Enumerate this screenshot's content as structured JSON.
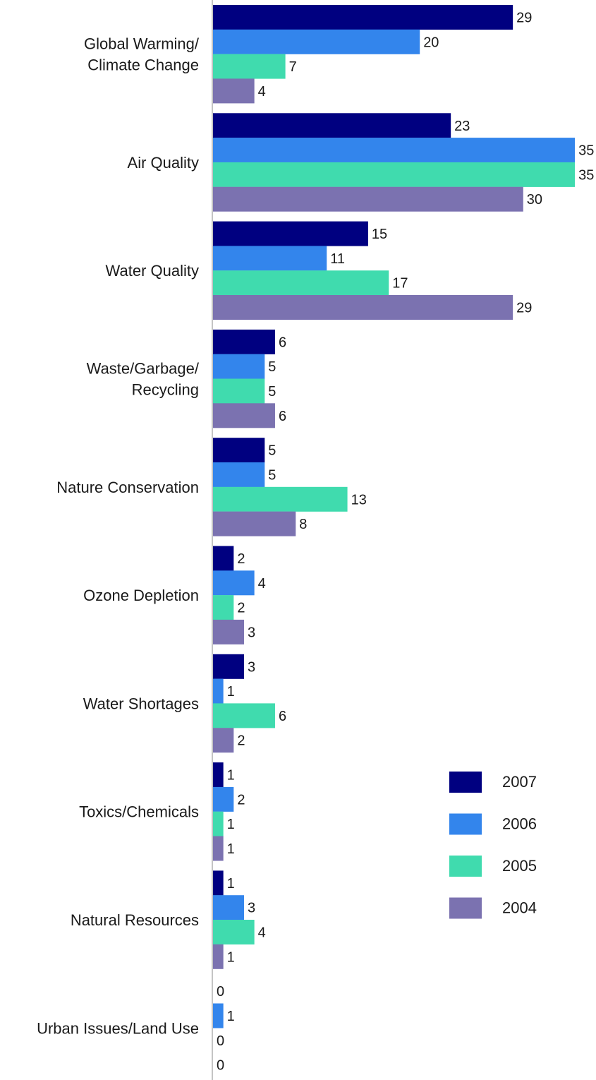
{
  "chart_data": {
    "type": "bar",
    "orientation": "horizontal",
    "categories": [
      [
        "Global Warming/",
        "Climate Change"
      ],
      [
        "Air Quality"
      ],
      [
        "Water Quality"
      ],
      [
        "Waste/Garbage/",
        "Recycling"
      ],
      [
        "Nature Conservation"
      ],
      [
        "Ozone Depletion"
      ],
      [
        "Water Shortages"
      ],
      [
        "Toxics/Chemicals"
      ],
      [
        "Natural Resources"
      ],
      [
        "Urban Issues/Land Use"
      ]
    ],
    "series": [
      {
        "name": "2007",
        "color": "#000080",
        "values": [
          29,
          23,
          15,
          6,
          5,
          2,
          3,
          1,
          1,
          0
        ]
      },
      {
        "name": "2006",
        "color": "#3385EC",
        "values": [
          20,
          35,
          11,
          5,
          5,
          4,
          1,
          2,
          3,
          1
        ]
      },
      {
        "name": "2005",
        "color": "#40DBAE",
        "values": [
          7,
          35,
          17,
          5,
          13,
          2,
          6,
          1,
          4,
          0
        ]
      },
      {
        "name": "2004",
        "color": "#7B72B0",
        "values": [
          4,
          30,
          29,
          6,
          8,
          3,
          2,
          1,
          1,
          0
        ]
      }
    ],
    "xlim": [
      0,
      35
    ],
    "data_labels": true,
    "grid": false,
    "legend": {
      "position": "right"
    }
  }
}
